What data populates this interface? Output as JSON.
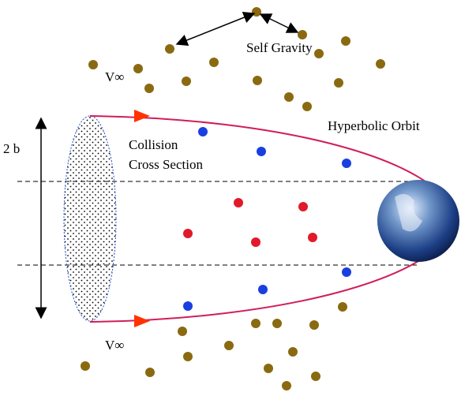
{
  "labels": {
    "self_gravity": "Self Gravity",
    "v_top": "V∞",
    "v_bottom": "V∞",
    "impact": "2 b",
    "cross_section": [
      "Collision",
      "Cross Section"
    ],
    "orbit": "Hyperbolic Orbit"
  }
}
